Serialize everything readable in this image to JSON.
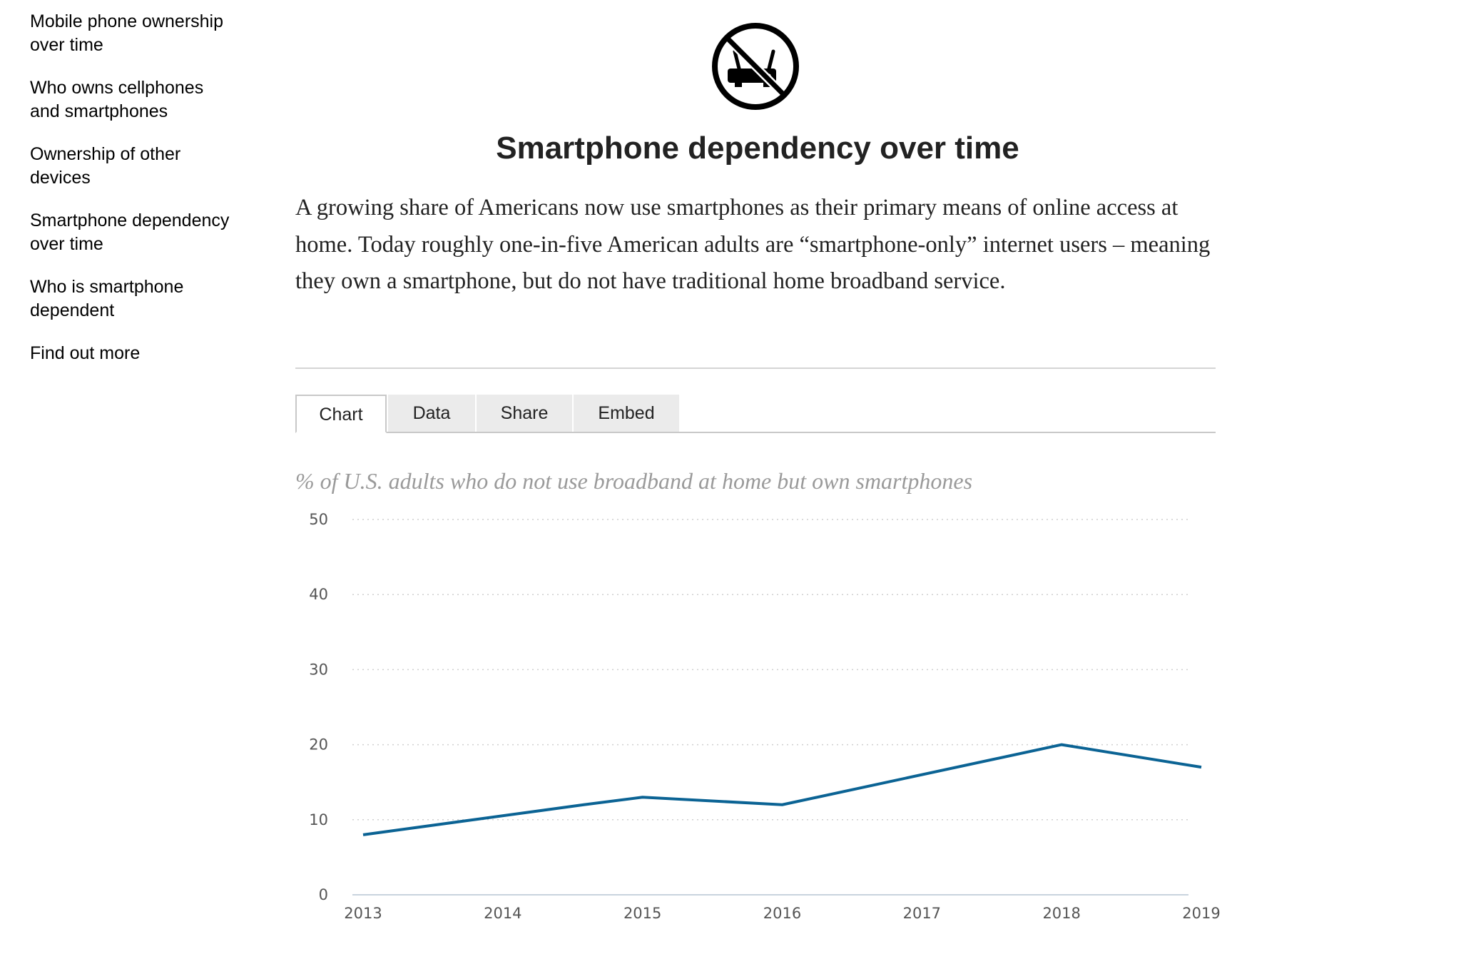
{
  "sidebar": {
    "items": [
      {
        "line1": "Mobile phone ownership",
        "line2": "over time"
      },
      {
        "line1": "Who owns cellphones",
        "line2": "and smartphones"
      },
      {
        "line1": "Ownership of other",
        "line2": "devices"
      },
      {
        "line1": "Smartphone dependency",
        "line2": "over time"
      },
      {
        "line1": "Who is smartphone",
        "line2": "dependent"
      },
      {
        "line1": "Find out more",
        "line2": ""
      }
    ]
  },
  "hero_icon": "no-broadband-router-icon",
  "title": "Smartphone dependency over time",
  "intro": "A growing share of Americans now use smartphones as their primary means of online access at home. Today roughly one-in-five American adults are “smartphone-only” internet users – meaning they own a smartphone, but do not have traditional home broadband service.",
  "tabs": [
    "Chart",
    "Data",
    "Share",
    "Embed"
  ],
  "active_tab": "Chart",
  "colors": {
    "line": "#0b6394",
    "subtitle": "#9a9a9a",
    "grid": "#cfcfcf"
  },
  "chart_data": {
    "type": "line",
    "title": "",
    "subtitle": "% of U.S. adults who do not use broadband at home but own smartphones",
    "x": [
      2013,
      2014,
      2015,
      2016,
      2017,
      2018,
      2019
    ],
    "x_points": [
      2013.0,
      2014.58,
      2015.0,
      2016.0,
      2018.0,
      2019.0
    ],
    "series": [
      {
        "name": "",
        "x": [
          2013.0,
          2014.58,
          2015.0,
          2016.0,
          2018.0,
          2019.0
        ],
        "values": [
          8,
          12,
          13,
          12,
          20,
          17
        ]
      }
    ],
    "ylim": [
      0,
      50
    ],
    "yticks": [
      0,
      10,
      20,
      30,
      40,
      50
    ],
    "xlabel": "",
    "ylabel": "",
    "grid": true,
    "legend": "none"
  }
}
